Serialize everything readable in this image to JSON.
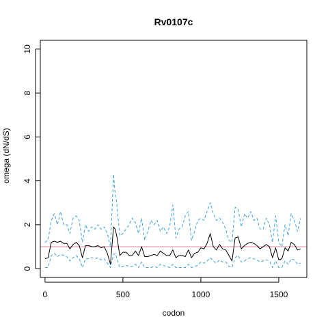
{
  "chart_data": {
    "type": "line",
    "title": "Rv0107c",
    "xlabel": "codon",
    "ylabel": "omega (dN/dS)",
    "xlim": [
      -30,
      1680
    ],
    "ylim": [
      -0.4,
      10.4
    ],
    "x_ticks": [
      0,
      500,
      1000,
      1500
    ],
    "y_ticks": [
      0,
      2,
      4,
      6,
      8,
      10
    ],
    "reference_line": {
      "y": 1.0,
      "color": "#d98aa8"
    },
    "colors": {
      "omega": "#000000",
      "ci": "#3a9ee0"
    },
    "series": [
      {
        "key": "omega",
        "style": "solid",
        "x": [
          0,
          20,
          40,
          60,
          80,
          100,
          120,
          140,
          160,
          180,
          200,
          220,
          240,
          260,
          280,
          300,
          320,
          340,
          360,
          380,
          400,
          420,
          440,
          450,
          460,
          480,
          500,
          520,
          540,
          560,
          580,
          600,
          620,
          640,
          660,
          680,
          700,
          720,
          740,
          760,
          780,
          800,
          820,
          840,
          860,
          880,
          900,
          920,
          940,
          960,
          980,
          1000,
          1020,
          1040,
          1060,
          1080,
          1100,
          1120,
          1140,
          1160,
          1180,
          1200,
          1220,
          1240,
          1260,
          1280,
          1300,
          1320,
          1340,
          1360,
          1380,
          1400,
          1420,
          1440,
          1460,
          1480,
          1500,
          1520,
          1540,
          1560,
          1580,
          1600,
          1620,
          1640
        ],
        "y": [
          0.45,
          0.5,
          1.2,
          1.25,
          1.2,
          1.25,
          1.15,
          1.15,
          0.9,
          1.1,
          1.2,
          1.05,
          0.5,
          1.05,
          1.05,
          1.0,
          1.0,
          1.05,
          0.95,
          1.0,
          0.7,
          0.2,
          1.9,
          1.8,
          1.5,
          0.6,
          0.75,
          0.75,
          0.6,
          0.6,
          0.8,
          0.6,
          1.0,
          0.55,
          0.55,
          0.6,
          0.65,
          0.6,
          0.8,
          0.7,
          0.6,
          0.6,
          0.85,
          0.5,
          0.6,
          0.6,
          0.55,
          0.85,
          0.5,
          0.7,
          0.75,
          0.95,
          0.9,
          1.15,
          1.6,
          1.0,
          0.85,
          1.1,
          0.9,
          0.85,
          0.6,
          0.35,
          1.4,
          1.45,
          0.9,
          1.05,
          1.15,
          1.2,
          1.15,
          1.05,
          0.9,
          1.0,
          1.1,
          1.0,
          0.5,
          0.95,
          0.4,
          0.45,
          0.95,
          0.8,
          1.2,
          1.1,
          0.85,
          0.9
        ]
      },
      {
        "key": "ci",
        "style": "dashed",
        "x": [
          0,
          20,
          40,
          60,
          80,
          100,
          120,
          140,
          160,
          180,
          200,
          220,
          240,
          260,
          280,
          300,
          320,
          340,
          360,
          380,
          400,
          420,
          440,
          450,
          460,
          480,
          500,
          520,
          540,
          560,
          580,
          600,
          620,
          640,
          660,
          680,
          700,
          720,
          740,
          760,
          780,
          800,
          820,
          840,
          860,
          880,
          900,
          920,
          940,
          960,
          980,
          1000,
          1020,
          1040,
          1060,
          1080,
          1100,
          1120,
          1140,
          1160,
          1180,
          1200,
          1220,
          1240,
          1260,
          1280,
          1300,
          1320,
          1340,
          1360,
          1380,
          1400,
          1420,
          1440,
          1460,
          1480,
          1500,
          1520,
          1540,
          1560,
          1580,
          1600,
          1620,
          1640
        ],
        "y": [
          1.2,
          1.3,
          2.2,
          2.5,
          2.0,
          2.6,
          2.0,
          2.0,
          1.6,
          2.3,
          2.4,
          2.2,
          1.2,
          2.0,
          1.7,
          1.9,
          1.8,
          2.0,
          1.8,
          1.9,
          1.6,
          1.0,
          4.3,
          3.4,
          3.0,
          1.5,
          1.6,
          1.8,
          2.0,
          2.3,
          2.1,
          1.6,
          2.3,
          1.3,
          1.7,
          2.2,
          2.0,
          2.2,
          1.7,
          1.9,
          1.6,
          1.9,
          2.9,
          1.4,
          1.8,
          1.9,
          2.4,
          2.6,
          1.3,
          1.7,
          2.2,
          2.3,
          2.2,
          2.6,
          3.0,
          2.5,
          2.2,
          2.3,
          2.1,
          1.8,
          1.3,
          1.2,
          2.8,
          2.7,
          1.9,
          2.5,
          2.3,
          2.6,
          2.2,
          2.3,
          1.8,
          1.8,
          2.3,
          2.0,
          1.2,
          2.4,
          1.2,
          1.0,
          2.0,
          1.5,
          2.5,
          2.2,
          1.7,
          2.3
        ]
      },
      {
        "key": "ci",
        "style": "dashed",
        "x": [
          0,
          20,
          40,
          60,
          80,
          100,
          120,
          140,
          160,
          180,
          200,
          220,
          240,
          260,
          280,
          300,
          320,
          340,
          360,
          380,
          400,
          420,
          440,
          450,
          460,
          480,
          500,
          520,
          540,
          560,
          580,
          600,
          620,
          640,
          660,
          680,
          700,
          720,
          740,
          760,
          780,
          800,
          820,
          840,
          860,
          880,
          900,
          920,
          940,
          960,
          980,
          1000,
          1020,
          1040,
          1060,
          1080,
          1100,
          1120,
          1140,
          1160,
          1180,
          1200,
          1220,
          1240,
          1260,
          1280,
          1300,
          1320,
          1340,
          1360,
          1380,
          1400,
          1420,
          1440,
          1460,
          1480,
          1500,
          1520,
          1540,
          1560,
          1580,
          1600,
          1620,
          1640
        ],
        "y": [
          0.05,
          0.05,
          0.6,
          0.7,
          0.55,
          0.65,
          0.6,
          0.55,
          0.35,
          0.5,
          0.6,
          0.45,
          0.05,
          0.45,
          0.45,
          0.5,
          0.45,
          0.5,
          0.4,
          0.45,
          0.25,
          0.05,
          0.65,
          0.7,
          0.5,
          0.05,
          0.1,
          0.15,
          0.1,
          0.1,
          0.2,
          0.05,
          0.3,
          0.05,
          0.05,
          0.05,
          0.1,
          0.05,
          0.2,
          0.15,
          0.1,
          0.05,
          0.2,
          0.05,
          0.05,
          0.05,
          0.05,
          0.2,
          0.05,
          0.1,
          0.15,
          0.3,
          0.25,
          0.35,
          0.5,
          0.35,
          0.25,
          0.4,
          0.3,
          0.3,
          0.1,
          0.05,
          0.5,
          0.6,
          0.3,
          0.35,
          0.45,
          0.5,
          0.45,
          0.4,
          0.3,
          0.35,
          0.4,
          0.35,
          0.05,
          0.35,
          0.05,
          0.05,
          0.35,
          0.2,
          0.45,
          0.4,
          0.2,
          0.25
        ]
      }
    ]
  }
}
